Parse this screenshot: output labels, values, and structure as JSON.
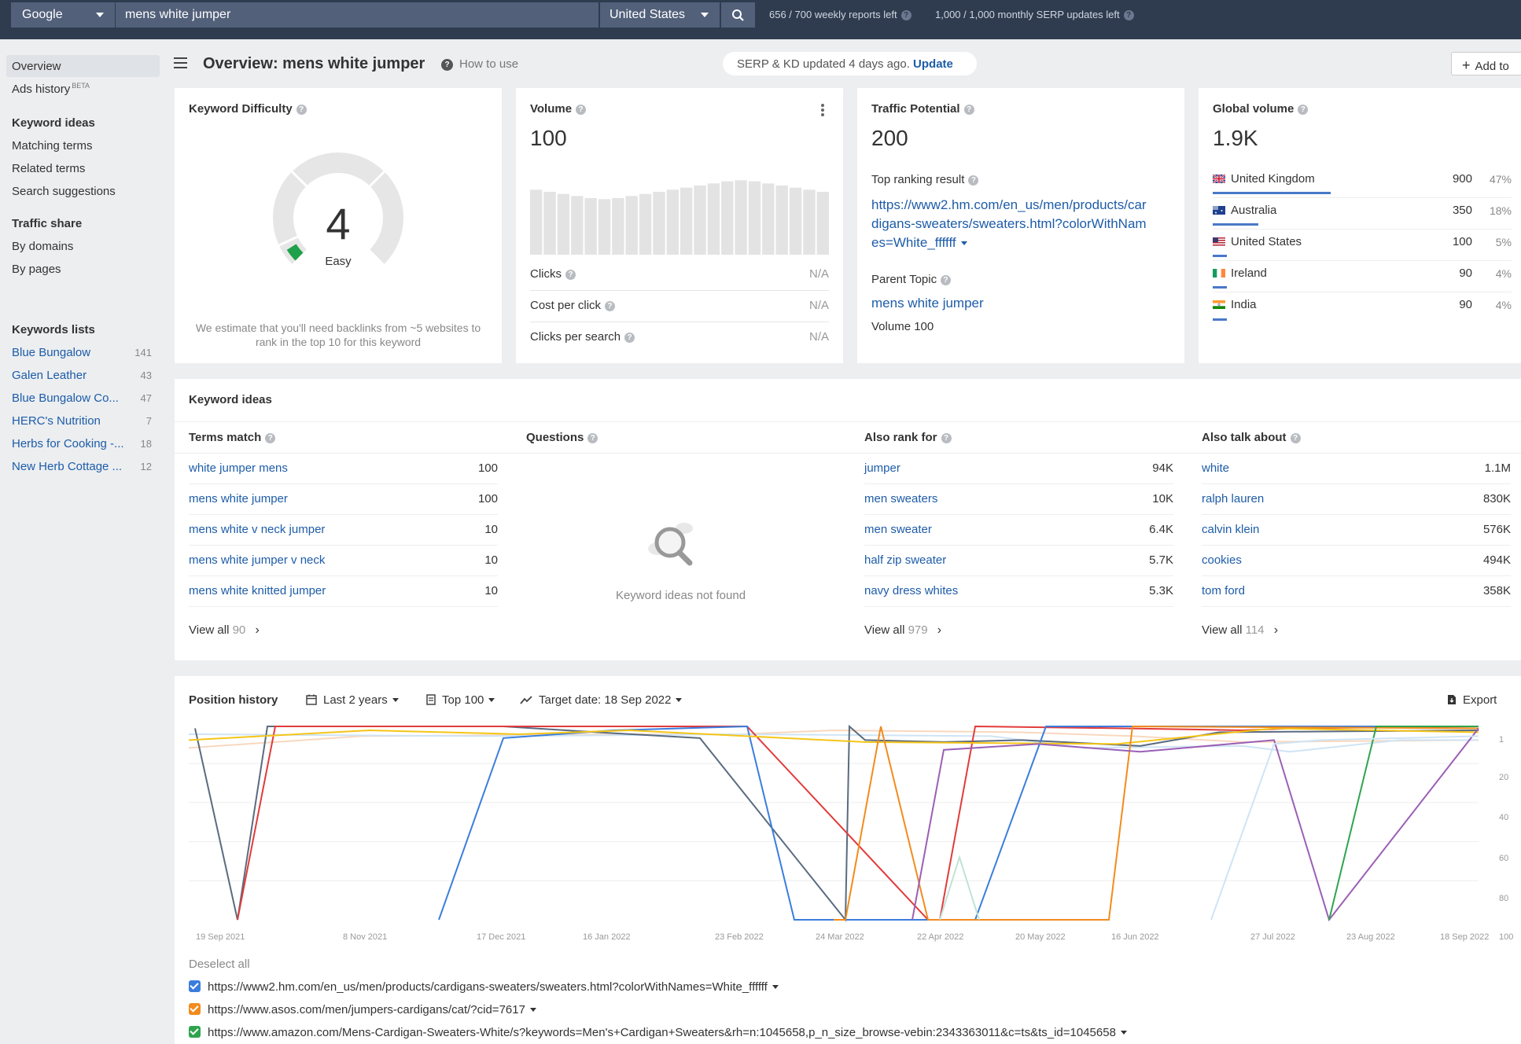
{
  "topbar": {
    "engine": "Google",
    "query": "mens white jumper",
    "country": "United States",
    "weekly_reports": "656 / 700 weekly reports left",
    "monthly_serp": "1,000 / 1,000 monthly SERP updates left"
  },
  "sidebar": {
    "overview": "Overview",
    "ads_history": "Ads history",
    "beta": "BETA",
    "keyword_ideas_head": "Keyword ideas",
    "matching_terms": "Matching terms",
    "related_terms": "Related terms",
    "search_suggestions": "Search suggestions",
    "traffic_share_head": "Traffic share",
    "by_domains": "By domains",
    "by_pages": "By pages",
    "keyword_lists_head": "Keywords lists",
    "lists": [
      {
        "name": "Blue Bungalow",
        "count": "141"
      },
      {
        "name": "Galen Leather",
        "count": "43"
      },
      {
        "name": "Blue Bungalow Co...",
        "count": "47"
      },
      {
        "name": "HERC's Nutrition",
        "count": "7"
      },
      {
        "name": "Herbs for Cooking -...",
        "count": "18"
      },
      {
        "name": "New Herb Cottage ...",
        "count": "12"
      }
    ]
  },
  "header": {
    "title": "Overview: mens white jumper",
    "how_to_use": "How to use",
    "serp_status": "SERP & KD updated 4 days ago.",
    "update": "Update",
    "add_to": "Add to"
  },
  "kd": {
    "title": "Keyword Difficulty",
    "value": "4",
    "label": "Easy",
    "note": "We estimate that you'll need backlinks from ~5 websites to rank in the top 10 for this keyword",
    "gauge_fraction": 0.04
  },
  "volume": {
    "title": "Volume",
    "value": "100",
    "trend_bars": [
      62,
      60,
      58,
      56,
      54,
      53,
      54,
      56,
      58,
      60,
      62,
      64,
      66,
      68,
      70,
      71,
      70,
      68,
      66,
      64,
      62,
      60
    ],
    "clicks_label": "Clicks",
    "clicks": "N/A",
    "cpc_label": "Cost per click",
    "cpc": "N/A",
    "cps_label": "Clicks per search",
    "cps": "N/A"
  },
  "traffic": {
    "title": "Traffic Potential",
    "value": "200",
    "top_ranking_label": "Top ranking result",
    "top_url_1": "https://www2.hm.com/en_us/men/products/car",
    "top_url_2": "digans-sweaters/sweaters.html?colorWithNam",
    "top_url_3": "es=White_ffffff",
    "parent_topic_label": "Parent Topic",
    "parent_topic": "mens white jumper",
    "parent_volume": "Volume 100"
  },
  "global": {
    "title": "Global volume",
    "value": "1.9K",
    "countries": [
      {
        "name": "United Kingdom",
        "volume": "900",
        "pct": "47%",
        "share": 0.47
      },
      {
        "name": "Australia",
        "volume": "350",
        "pct": "18%",
        "share": 0.18
      },
      {
        "name": "United States",
        "volume": "100",
        "pct": "5%",
        "share": 0.05
      },
      {
        "name": "Ireland",
        "volume": "90",
        "pct": "4%",
        "share": 0.04
      },
      {
        "name": "India",
        "volume": "90",
        "pct": "4%",
        "share": 0.04
      }
    ]
  },
  "ideas": {
    "title": "Keyword ideas",
    "terms_match": {
      "head": "Terms match",
      "rows": [
        {
          "k": "white jumper mens",
          "v": "100"
        },
        {
          "k": "mens white jumper",
          "v": "100"
        },
        {
          "k": "mens white v neck jumper",
          "v": "10"
        },
        {
          "k": "mens white jumper v neck",
          "v": "10"
        },
        {
          "k": "mens white knitted jumper",
          "v": "10"
        }
      ],
      "view_all": "View all",
      "count": "90"
    },
    "questions": {
      "head": "Questions",
      "empty": "Keyword ideas not found"
    },
    "also_rank": {
      "head": "Also rank for",
      "rows": [
        {
          "k": "jumper",
          "v": "94K"
        },
        {
          "k": "men sweaters",
          "v": "10K"
        },
        {
          "k": "men sweater",
          "v": "6.4K"
        },
        {
          "k": "half zip sweater",
          "v": "5.7K"
        },
        {
          "k": "navy dress whites",
          "v": "5.3K"
        }
      ],
      "view_all": "View all",
      "count": "979"
    },
    "also_talk": {
      "head": "Also talk about",
      "rows": [
        {
          "k": "white",
          "v": "1.1M"
        },
        {
          "k": "ralph lauren",
          "v": "830K"
        },
        {
          "k": "calvin klein",
          "v": "576K"
        },
        {
          "k": "cookies",
          "v": "494K"
        },
        {
          "k": "tom ford",
          "v": "358K"
        }
      ],
      "view_all": "View all",
      "count": "114"
    }
  },
  "position_history": {
    "title": "Position history",
    "range": "Last 2 years",
    "top": "Top 100",
    "target_date": "Target date: 18 Sep 2022",
    "export": "Export",
    "deselect_all": "Deselect all",
    "y_ticks": [
      "1",
      "20",
      "40",
      "60",
      "80",
      "100"
    ],
    "x_ticks": [
      "19 Sep 2021",
      "8 Nov 2021",
      "17 Dec 2021",
      "16 Jan 2022",
      "23 Feb 2022",
      "24 Mar 2022",
      "22 Apr 2022",
      "20 May 2022",
      "16 Jun 2022",
      "27 Jul 2022",
      "23 Aug 2022",
      "18 Sep 2022"
    ],
    "urls": [
      {
        "url": "https://www2.hm.com/en_us/men/products/cardigans-sweaters/sweaters.html?colorWithNames=White_ffffff",
        "color": "#3b7ddd"
      },
      {
        "url": "https://www.asos.com/men/jumpers-cardigans/cat/?cid=7617",
        "color": "#f28b1e"
      },
      {
        "url": "https://www.amazon.com/Mens-Cardigan-Sweaters-White/s?keywords=Men's+Cardigan+Sweaters&rh=n:1045658,p_n_size_browse-vebin:2343363011&c=ts&ts_id=1045658",
        "color": "#2ea44f"
      }
    ]
  },
  "colors": {
    "topbar": "#2f3c50",
    "link": "#1d5ca8",
    "kd_easy": "#1fa04a"
  }
}
